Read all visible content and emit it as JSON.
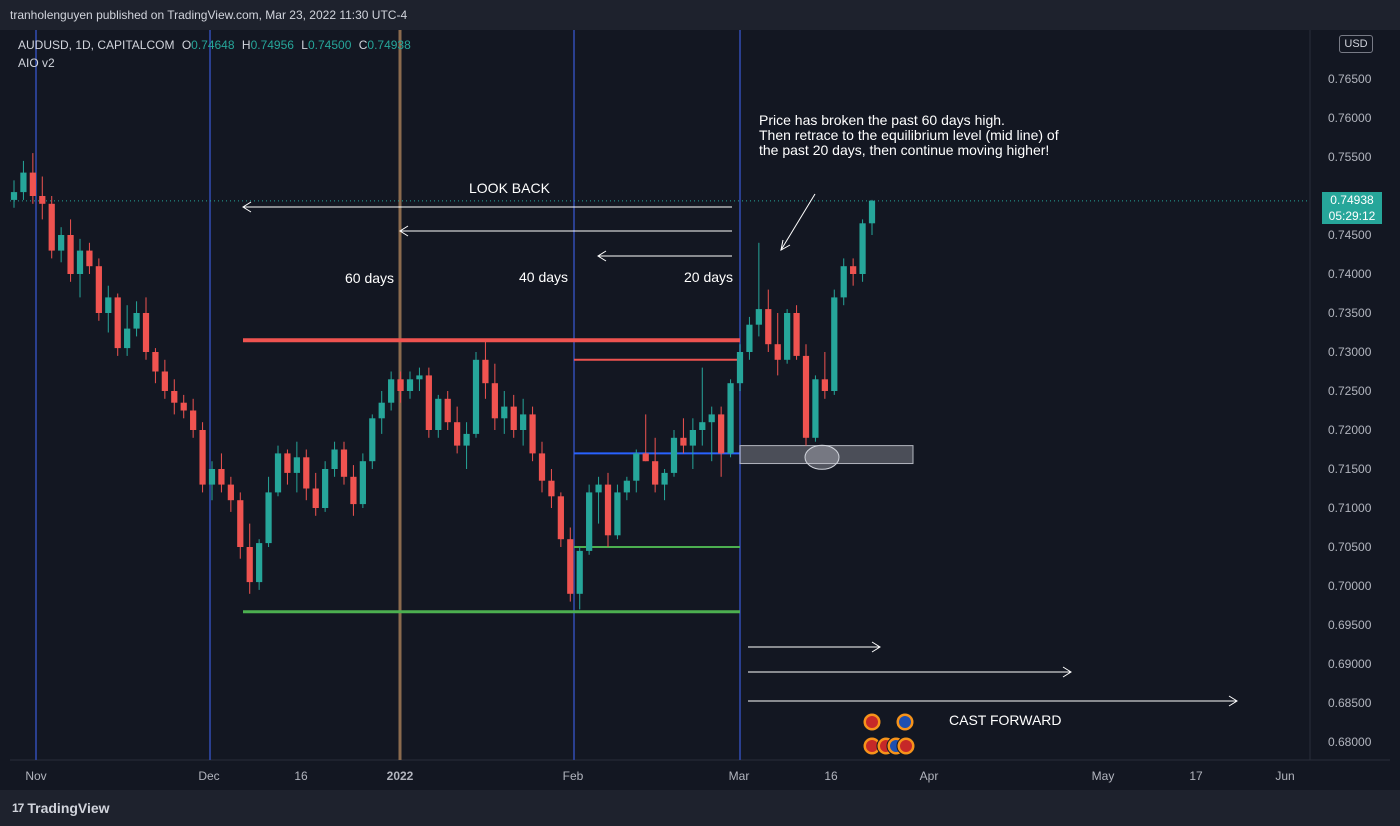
{
  "header": {
    "publish_line": "tranholenguyen published on TradingView.com, Mar 23, 2022 11:30 UTC-4"
  },
  "legend": {
    "symbol": "AUDUSD, 1D, CAPITALCOM",
    "o_label": "O",
    "o_value": "0.74648",
    "h_label": "H",
    "h_value": "0.74956",
    "l_label": "L",
    "l_value": "0.74500",
    "c_label": "C",
    "c_value": "0.74938",
    "indicator": "AIO v2"
  },
  "currency_button": "USD",
  "last_price": {
    "price": "0.74938",
    "countdown": "05:29:12"
  },
  "annotations": {
    "note_line1": "Price has broken the past 60 days high.",
    "note_line2": "Then retrace to the equilibrium level (mid line) of",
    "note_line3": "the past 20 days, then continue moving higher!",
    "look_back": "LOOK BACK",
    "days60": "60 days",
    "days40": "40 days",
    "days20": "20 days",
    "cast_forward": "CAST FORWARD"
  },
  "footer": {
    "brand": "TradingView"
  },
  "colors": {
    "up": "#26a69a",
    "down": "#ef5350",
    "warn_up": "#8a8a2a",
    "warn_down": "#b07020",
    "vline_blue": "#2a3f8f",
    "vline_brown": "#8b6b4e",
    "red_level": "#ef5350",
    "green_level": "#4caf50",
    "blue_level": "#2962ff"
  },
  "chart_data": {
    "type": "candlestick",
    "symbol": "AUDUSD",
    "timeframe": "1D",
    "y_range": [
      0.678,
      0.772
    ],
    "y_ticks": [
      "0.76500",
      "0.76000",
      "0.75500",
      "0.74500",
      "0.74000",
      "0.73500",
      "0.73000",
      "0.72500",
      "0.72000",
      "0.71500",
      "0.71000",
      "0.70500",
      "0.70000",
      "0.69500",
      "0.69000",
      "0.68500",
      "0.68000"
    ],
    "x_ticks": [
      "Nov",
      "Dec",
      "16",
      "2022",
      "Feb",
      "Mar",
      "16",
      "Apr",
      "May",
      "17",
      "Jun"
    ],
    "candles": [
      [
        0.7495,
        0.752,
        0.7485,
        0.7505
      ],
      [
        0.7505,
        0.7545,
        0.7495,
        0.753
      ],
      [
        0.753,
        0.7555,
        0.749,
        0.75
      ],
      [
        0.75,
        0.7525,
        0.747,
        0.749
      ],
      [
        0.749,
        0.75,
        0.742,
        0.743
      ],
      [
        0.743,
        0.746,
        0.7415,
        0.745
      ],
      [
        0.745,
        0.747,
        0.739,
        0.74
      ],
      [
        0.74,
        0.7445,
        0.737,
        0.743
      ],
      [
        0.743,
        0.744,
        0.74,
        0.741
      ],
      [
        0.741,
        0.742,
        0.734,
        0.735
      ],
      [
        0.735,
        0.7385,
        0.7325,
        0.737
      ],
      [
        0.737,
        0.7375,
        0.7295,
        0.7305
      ],
      [
        0.7305,
        0.736,
        0.7295,
        0.733
      ],
      [
        0.733,
        0.7365,
        0.732,
        0.735
      ],
      [
        0.735,
        0.737,
        0.729,
        0.73
      ],
      [
        0.73,
        0.7305,
        0.726,
        0.7275
      ],
      [
        0.7275,
        0.729,
        0.724,
        0.725
      ],
      [
        0.725,
        0.7265,
        0.722,
        0.7235
      ],
      [
        0.7235,
        0.7245,
        0.7215,
        0.7225
      ],
      [
        0.7225,
        0.724,
        0.719,
        0.72
      ],
      [
        0.72,
        0.721,
        0.712,
        0.713
      ],
      [
        0.713,
        0.716,
        0.711,
        0.715
      ],
      [
        0.715,
        0.717,
        0.712,
        0.713
      ],
      [
        0.713,
        0.714,
        0.7095,
        0.711
      ],
      [
        0.711,
        0.712,
        0.7035,
        0.705
      ],
      [
        0.705,
        0.708,
        0.699,
        0.7005
      ],
      [
        0.7005,
        0.706,
        0.6995,
        0.7055
      ],
      [
        0.7055,
        0.714,
        0.705,
        0.712
      ],
      [
        0.712,
        0.718,
        0.7115,
        0.717
      ],
      [
        0.717,
        0.7175,
        0.713,
        0.7145
      ],
      [
        0.7145,
        0.7185,
        0.712,
        0.7165
      ],
      [
        0.7165,
        0.7175,
        0.711,
        0.7125
      ],
      [
        0.7125,
        0.7145,
        0.709,
        0.71
      ],
      [
        0.71,
        0.716,
        0.7095,
        0.715
      ],
      [
        0.715,
        0.7185,
        0.714,
        0.7175
      ],
      [
        0.7175,
        0.7185,
        0.713,
        0.714
      ],
      [
        0.714,
        0.7155,
        0.709,
        0.7105
      ],
      [
        0.7105,
        0.717,
        0.71,
        0.716
      ],
      [
        0.716,
        0.722,
        0.715,
        0.7215
      ],
      [
        0.7215,
        0.725,
        0.7195,
        0.7235
      ],
      [
        0.7235,
        0.7275,
        0.7225,
        0.7265
      ],
      [
        0.7265,
        0.7275,
        0.7235,
        0.725
      ],
      [
        0.725,
        0.7275,
        0.724,
        0.7265
      ],
      [
        0.7265,
        0.728,
        0.725,
        0.727
      ],
      [
        0.727,
        0.728,
        0.719,
        0.72
      ],
      [
        0.72,
        0.7245,
        0.719,
        0.724
      ],
      [
        0.724,
        0.725,
        0.72,
        0.721
      ],
      [
        0.721,
        0.723,
        0.717,
        0.718
      ],
      [
        0.718,
        0.721,
        0.715,
        0.7195
      ],
      [
        0.7195,
        0.73,
        0.719,
        0.729
      ],
      [
        0.729,
        0.7315,
        0.724,
        0.726
      ],
      [
        0.726,
        0.7285,
        0.72,
        0.7215
      ],
      [
        0.7215,
        0.725,
        0.7195,
        0.723
      ],
      [
        0.723,
        0.7245,
        0.719,
        0.72
      ],
      [
        0.72,
        0.724,
        0.718,
        0.722
      ],
      [
        0.722,
        0.723,
        0.716,
        0.717
      ],
      [
        0.717,
        0.7185,
        0.712,
        0.7135
      ],
      [
        0.7135,
        0.715,
        0.71,
        0.7115
      ],
      [
        0.7115,
        0.712,
        0.705,
        0.706
      ],
      [
        0.706,
        0.7075,
        0.698,
        0.699
      ],
      [
        0.699,
        0.705,
        0.697,
        0.7045
      ],
      [
        0.7045,
        0.713,
        0.704,
        0.712
      ],
      [
        0.712,
        0.714,
        0.708,
        0.713
      ],
      [
        0.713,
        0.7145,
        0.705,
        0.7065
      ],
      [
        0.7065,
        0.713,
        0.706,
        0.712
      ],
      [
        0.712,
        0.714,
        0.711,
        0.7135
      ],
      [
        0.7135,
        0.7175,
        0.712,
        0.717
      ],
      [
        0.717,
        0.722,
        0.716,
        0.716
      ],
      [
        0.716,
        0.719,
        0.712,
        0.713
      ],
      [
        0.713,
        0.715,
        0.711,
        0.7145
      ],
      [
        0.7145,
        0.72,
        0.714,
        0.719
      ],
      [
        0.719,
        0.7215,
        0.717,
        0.718
      ],
      [
        0.718,
        0.7215,
        0.715,
        0.72
      ],
      [
        0.72,
        0.728,
        0.718,
        0.721
      ],
      [
        0.721,
        0.723,
        0.716,
        0.722
      ],
      [
        0.722,
        0.723,
        0.714,
        0.717
      ],
      [
        0.717,
        0.7265,
        0.7165,
        0.726
      ],
      [
        0.726,
        0.731,
        0.725,
        0.73
      ],
      [
        0.73,
        0.7345,
        0.729,
        0.7335
      ],
      [
        0.7335,
        0.744,
        0.732,
        0.7355
      ],
      [
        0.7355,
        0.738,
        0.73,
        0.731
      ],
      [
        0.731,
        0.735,
        0.727,
        0.729
      ],
      [
        0.729,
        0.7355,
        0.7285,
        0.735
      ],
      [
        0.735,
        0.736,
        0.729,
        0.7295
      ],
      [
        0.7295,
        0.731,
        0.718,
        0.719
      ],
      [
        0.719,
        0.727,
        0.7185,
        0.7265
      ],
      [
        0.7265,
        0.73,
        0.724,
        0.725
      ],
      [
        0.725,
        0.738,
        0.7245,
        0.737
      ],
      [
        0.737,
        0.742,
        0.736,
        0.741
      ],
      [
        0.741,
        0.742,
        0.7385,
        0.74
      ],
      [
        0.74,
        0.747,
        0.739,
        0.7465
      ],
      [
        0.7465,
        0.7495,
        0.745,
        0.7494
      ]
    ]
  }
}
